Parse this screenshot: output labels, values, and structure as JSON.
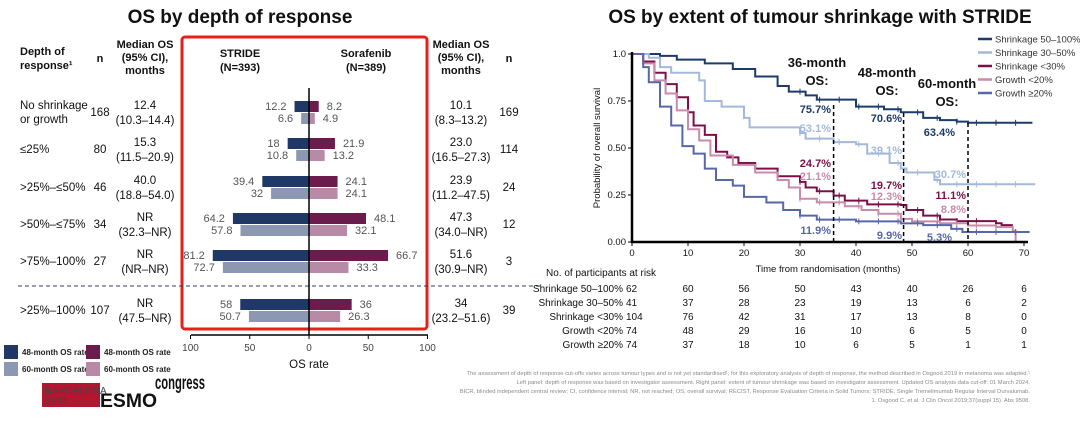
{
  "chart_data": [
    {
      "type": "bar",
      "title": "OS by depth of response",
      "headers": {
        "depth": [
          "Depth of",
          "response¹"
        ],
        "n": "n",
        "median": [
          "Median OS",
          "(95% CI),",
          "months"
        ],
        "stride": [
          "STRIDE",
          "(N=393)"
        ],
        "sorafenib": [
          "Sorafenib",
          "(N=389)"
        ]
      },
      "xlabel": "OS rate",
      "xticks": [
        "100",
        "50",
        "0",
        "50",
        "100"
      ],
      "xlim": [
        -100,
        100
      ],
      "legend": {
        "stride_48": "48-month OS rate",
        "stride_60": "60-month OS rate",
        "sor_48": "48-month OS rate",
        "sor_60": "60-month OS rate"
      },
      "colors": {
        "stride_48": "#1f3866",
        "stride_60": "#8c97b1",
        "sor_48": "#6c1b4d",
        "sor_60": "#b98aa6",
        "highlight_box": "#e8201a"
      },
      "rows": [
        {
          "label": [
            "No shrinkage",
            "or growth"
          ],
          "n_stride": "168",
          "mos_stride": "12.4",
          "ci_stride": "(10.3–14.4)",
          "stride_48": 12.2,
          "stride_60": 6.6,
          "sor_48": 8.2,
          "sor_60": 4.9,
          "mos_sor": "10.1",
          "ci_sor": "(8.3–13.2)",
          "n_sor": "169"
        },
        {
          "label": [
            "≤25%"
          ],
          "n_stride": "80",
          "mos_stride": "15.3",
          "ci_stride": "(11.5–20.9)",
          "stride_48": 18.0,
          "stride_60": 10.8,
          "sor_48": 21.9,
          "sor_60": 13.2,
          "mos_sor": "23.0",
          "ci_sor": "(16.5–27.3)",
          "n_sor": "114"
        },
        {
          "label": [
            ">25%–≤50%"
          ],
          "n_stride": "46",
          "mos_stride": "40.0",
          "ci_stride": "(18.8–54.0)",
          "stride_48": 39.4,
          "stride_60": 32.0,
          "sor_48": 24.1,
          "sor_60": 24.1,
          "mos_sor": "23.9",
          "ci_sor": "(11.2–47.5)",
          "n_sor": "24"
        },
        {
          "label": [
            ">50%–≤75%"
          ],
          "n_stride": "34",
          "mos_stride": "NR",
          "ci_stride": "(32.3–NR)",
          "stride_48": 64.2,
          "stride_60": 57.8,
          "sor_48": 48.1,
          "sor_60": 32.1,
          "mos_sor": "47.3",
          "ci_sor": "(34.0–NR)",
          "n_sor": "12"
        },
        {
          "label": [
            ">75%–100%"
          ],
          "n_stride": "27",
          "mos_stride": "NR",
          "ci_stride": "(NR–NR)",
          "stride_48": 81.2,
          "stride_60": 72.7,
          "sor_48": 66.7,
          "sor_60": 33.3,
          "mos_sor": "51.6",
          "ci_sor": "(30.9–NR)",
          "n_sor": "3"
        },
        {
          "label": [
            ">25%–100%"
          ],
          "n_stride": "107",
          "mos_stride": "NR",
          "ci_stride": "(47.5–NR)",
          "stride_48": 58.0,
          "stride_60": 50.7,
          "sor_48": 36.0,
          "sor_60": 26.3,
          "mos_sor": "34",
          "ci_sor": "(23.2–51.6)",
          "n_sor": "39"
        }
      ]
    },
    {
      "type": "line",
      "title": "OS by extent of tumour shrinkage with STRIDE",
      "xlabel": "Time from randomisation (months)",
      "ylabel": "Probability of overall survival",
      "xlim": [
        0,
        72
      ],
      "ylim": [
        0,
        1
      ],
      "xticks": [
        "0",
        "10",
        "20",
        "30",
        "40",
        "50",
        "60",
        "70"
      ],
      "yticks": [
        "1.0",
        "0.75",
        "0.50",
        "0.25",
        "0.00"
      ],
      "legend_position": "top-right",
      "annotations": [
        {
          "lines": [
            "36-month",
            "OS:"
          ],
          "month": 36
        },
        {
          "lines": [
            "48-month",
            "OS:"
          ],
          "month": 48.5
        },
        {
          "lines": [
            "60-month",
            "OS:"
          ],
          "month": 60
        }
      ],
      "series": [
        {
          "name": "Shrinkage 50–100%",
          "color": "#1c3a6b",
          "labels": [
            "75.7%",
            "70.6%",
            "63.4%"
          ],
          "points": [
            [
              0,
              1
            ],
            [
              5,
              0.99
            ],
            [
              8,
              0.97
            ],
            [
              13,
              0.95
            ],
            [
              18,
              0.92
            ],
            [
              22,
              0.88
            ],
            [
              26,
              0.83
            ],
            [
              28,
              0.8
            ],
            [
              31,
              0.78
            ],
            [
              33,
              0.757
            ],
            [
              40,
              0.72
            ],
            [
              45,
              0.706
            ],
            [
              48,
              0.69
            ],
            [
              52,
              0.66
            ],
            [
              55,
              0.648
            ],
            [
              58,
              0.64
            ],
            [
              60,
              0.634
            ],
            [
              71.5,
              0.634
            ]
          ]
        },
        {
          "name": "Shrinkage 30–50%",
          "color": "#a3b8dd",
          "labels": [
            "53.1%",
            "39.1%",
            "30.7%"
          ],
          "points": [
            [
              0,
              1
            ],
            [
              3,
              0.98
            ],
            [
              5,
              0.93
            ],
            [
              7,
              0.9
            ],
            [
              12,
              0.86
            ],
            [
              13,
              0.75
            ],
            [
              16,
              0.72
            ],
            [
              20,
              0.66
            ],
            [
              21,
              0.61
            ],
            [
              30,
              0.58
            ],
            [
              31,
              0.55
            ],
            [
              36,
              0.531
            ],
            [
              40,
              0.52
            ],
            [
              42,
              0.47
            ],
            [
              46,
              0.42
            ],
            [
              48,
              0.391
            ],
            [
              49,
              0.37
            ],
            [
              54,
              0.33
            ],
            [
              55,
              0.307
            ],
            [
              72,
              0.307
            ]
          ]
        },
        {
          "name": "Shrinkage <30%",
          "color": "#7b1048",
          "labels": [
            "24.7%",
            "19.7%",
            "11.1%"
          ],
          "points": [
            [
              0,
              1
            ],
            [
              2,
              0.96
            ],
            [
              4,
              0.9
            ],
            [
              6,
              0.84
            ],
            [
              8,
              0.77
            ],
            [
              10,
              0.69
            ],
            [
              11,
              0.62
            ],
            [
              13,
              0.57
            ],
            [
              15,
              0.48
            ],
            [
              17,
              0.45
            ],
            [
              19,
              0.42
            ],
            [
              22,
              0.39
            ],
            [
              26,
              0.35
            ],
            [
              30,
              0.32
            ],
            [
              31,
              0.29
            ],
            [
              33,
              0.27
            ],
            [
              36,
              0.247
            ],
            [
              38,
              0.22
            ],
            [
              42,
              0.2
            ],
            [
              48,
              0.197
            ],
            [
              49,
              0.17
            ],
            [
              52,
              0.14
            ],
            [
              55,
              0.12
            ],
            [
              58,
              0.111
            ],
            [
              65,
              0.1
            ],
            [
              66,
              0.09
            ],
            [
              68,
              0.09
            ]
          ]
        },
        {
          "name": "Growth <20%",
          "color": "#c98aab",
          "labels": [
            "21.1%",
            "12.3%",
            "8.8%"
          ],
          "points": [
            [
              0,
              1
            ],
            [
              2,
              0.95
            ],
            [
              4,
              0.86
            ],
            [
              6,
              0.79
            ],
            [
              8,
              0.7
            ],
            [
              10,
              0.6
            ],
            [
              12,
              0.54
            ],
            [
              14,
              0.46
            ],
            [
              18,
              0.41
            ],
            [
              22,
              0.37
            ],
            [
              26,
              0.33
            ],
            [
              28,
              0.29
            ],
            [
              30,
              0.23
            ],
            [
              33,
              0.211
            ],
            [
              38,
              0.19
            ],
            [
              41,
              0.17
            ],
            [
              44,
              0.15
            ],
            [
              48,
              0.123
            ],
            [
              50,
              0.11
            ],
            [
              55,
              0.1
            ],
            [
              60,
              0.088
            ],
            [
              65,
              0.08
            ],
            [
              68,
              0.06
            ],
            [
              68.5,
              0
            ]
          ]
        },
        {
          "name": "Growth ≥20%",
          "color": "#5867a6",
          "labels": [
            "11.9%",
            "9.9%",
            "5.3%"
          ],
          "points": [
            [
              0,
              1
            ],
            [
              2,
              0.93
            ],
            [
              3,
              0.85
            ],
            [
              5,
              0.72
            ],
            [
              7,
              0.62
            ],
            [
              9,
              0.51
            ],
            [
              11,
              0.47
            ],
            [
              13,
              0.39
            ],
            [
              15,
              0.33
            ],
            [
              18,
              0.3
            ],
            [
              20,
              0.24
            ],
            [
              24,
              0.21
            ],
            [
              27,
              0.17
            ],
            [
              30,
              0.14
            ],
            [
              33,
              0.119
            ],
            [
              40,
              0.11
            ],
            [
              48,
              0.099
            ],
            [
              52,
              0.09
            ],
            [
              57,
              0.07
            ],
            [
              59,
              0.053
            ],
            [
              71,
              0.053
            ]
          ]
        }
      ],
      "at_risk": {
        "header": "No. of participants at risk",
        "rows": [
          {
            "label": "Shrinkage 50–100%",
            "values": [
              "62",
              "60",
              "56",
              "50",
              "43",
              "40",
              "26",
              "6"
            ]
          },
          {
            "label": "Shrinkage 30–50%",
            "values": [
              "41",
              "37",
              "28",
              "23",
              "19",
              "13",
              "6",
              "2"
            ]
          },
          {
            "label": "Shrinkage <30%",
            "values": [
              "104",
              "76",
              "42",
              "31",
              "17",
              "13",
              "8",
              "0"
            ]
          },
          {
            "label": "Growth <20%",
            "values": [
              "74",
              "48",
              "29",
              "16",
              "10",
              "6",
              "5",
              "0"
            ]
          },
          {
            "label": "Growth ≥20%",
            "values": [
              "74",
              "37",
              "18",
              "10",
              "6",
              "5",
              "1",
              "1"
            ]
          }
        ]
      }
    }
  ],
  "footnotes": [
    "The assessment of depth of response cut-offs varies across tumour types and is not yet standardised¹; for this exploratory analysis of depth of response, the method described in Osgood 2019 in melanoma was adapted.¹",
    "Left panel: depth of response was based on investigator assessment. Right panel: extent of tumour shrinkage was based on investigator assessment. Updated OS analysis data cut-off: 01 March 2024.",
    "BICR, blinded independent central review; CI, confidence interval; NR, not reached; OS, overall survival; RECIST, Response Evaluation Criteria in Solid Tumors; STRIDE, Single Tremelimumab Regular Interval Durvalumab.",
    "1. Osgood C, et al. J Clin Oncol 2019;37(suppl 15). Abs 9508."
  ],
  "logo": {
    "city": "BARCELONA",
    "year": "2024",
    "brand": "ESMO",
    "suffix": "congress"
  }
}
